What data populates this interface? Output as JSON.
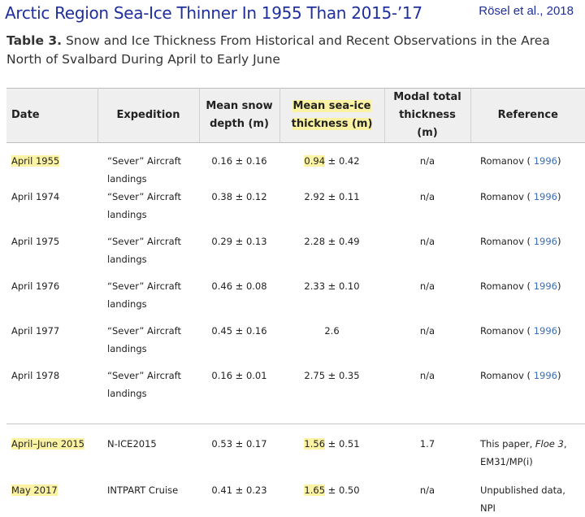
{
  "banner": {
    "title": "Arctic Region Sea-Ice Thinner In 1955 Than 2015-’17",
    "citation": "Rösel et al., 2018"
  },
  "caption": {
    "label": "Table 3.",
    "text": " Snow and Ice Thickness From Historical and Recent Observations in the Area North of Svalbard During April to Early June"
  },
  "table": {
    "headers": {
      "date": "Date",
      "expedition": "Expedition",
      "snow_l1": "Mean snow",
      "snow_l2": "depth (m)",
      "ice_l1": "Mean sea-ice",
      "ice_l2": "thickness (m)",
      "modal_l1": "Modal total",
      "modal_l2": "thickness (m)",
      "reference": "Reference"
    },
    "rows": [
      {
        "date": "April 1955",
        "exp_l1": "“Sever” Aircraft",
        "exp_l2": "landings",
        "snow": "0.16 ± 0.16",
        "ice_val": "0.94",
        "ice_err": " ± 0.42",
        "modal": "n/a",
        "ref_name": "Romanov (",
        "ref_year": " 1996",
        "ref_close": ")"
      },
      {
        "date": "April 1974",
        "exp_l1": "“Sever” Aircraft",
        "exp_l2": "landings",
        "snow": "0.38 ± 0.12",
        "ice_val": "2.92",
        "ice_err": " ± 0.11",
        "modal": "n/a",
        "ref_name": "Romanov (",
        "ref_year": " 1996",
        "ref_close": ")"
      },
      {
        "date": "April 1975",
        "exp_l1": "“Sever” Aircraft",
        "exp_l2": "landings",
        "snow": "0.29 ± 0.13",
        "ice_val": "2.28",
        "ice_err": " ± 0.49",
        "modal": "n/a",
        "ref_name": "Romanov (",
        "ref_year": " 1996",
        "ref_close": ")"
      },
      {
        "date": "April 1976",
        "exp_l1": "“Sever” Aircraft",
        "exp_l2": "landings",
        "snow": "0.46 ± 0.08",
        "ice_val": "2.33",
        "ice_err": " ± 0.10",
        "modal": "n/a",
        "ref_name": "Romanov (",
        "ref_year": " 1996",
        "ref_close": ")"
      },
      {
        "date": "April 1977",
        "exp_l1": "“Sever” Aircraft",
        "exp_l2": "landings",
        "snow": "0.45 ± 0.16",
        "ice_val": "2.6",
        "ice_err": "",
        "modal": "n/a",
        "ref_name": "Romanov (",
        "ref_year": " 1996",
        "ref_close": ")"
      },
      {
        "date": "April 1978",
        "exp_l1": "“Sever” Aircraft",
        "exp_l2": "landings",
        "snow": "0.16 ± 0.01",
        "ice_val": "2.75",
        "ice_err": " ± 0.35",
        "modal": "n/a",
        "ref_name": "Romanov (",
        "ref_year": " 1996",
        "ref_close": ")"
      }
    ],
    "recent_rows": [
      {
        "date": "April–June 2015",
        "exp_l1": "N-ICE2015",
        "exp_l2": "",
        "snow": "0.53 ± 0.17",
        "ice_val": "1.56",
        "ice_err": " ± 0.51",
        "modal": "1.7",
        "ref_l1a": "This paper, ",
        "ref_l1b": "Floe 3",
        "ref_l1c": ",",
        "ref_l2": "EM31/MP(i)"
      },
      {
        "date": "May 2017",
        "exp_l1": "INTPART Cruise",
        "exp_l2": "",
        "snow": "0.41 ± 0.23",
        "ice_val": "1.65",
        "ice_err": " ± 0.50",
        "modal": "n/a",
        "ref_l1a": "Unpublished data,",
        "ref_l1b": "",
        "ref_l1c": "",
        "ref_l2": "NPI"
      }
    ]
  },
  "colors": {
    "banner_text": "#1f2f9e",
    "highlight": "#fbf3a3",
    "header_bg": "#efefef",
    "link": "#3b6fb6"
  }
}
